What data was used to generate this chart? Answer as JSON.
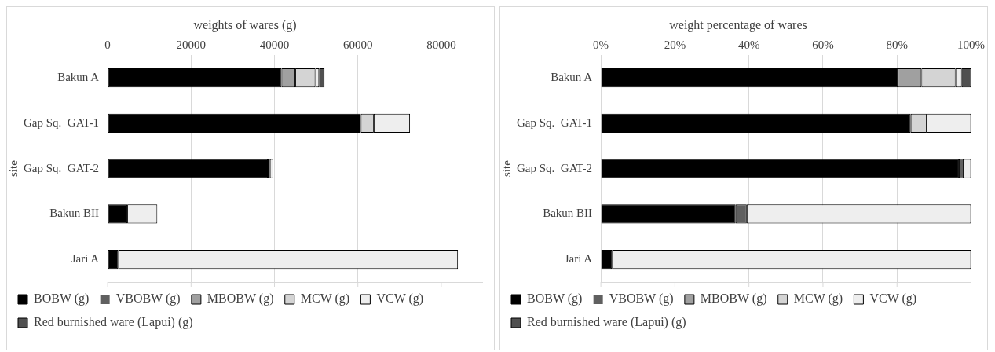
{
  "chart_data": [
    {
      "type": "bar",
      "orientation": "horizontal",
      "stacked": true,
      "title": "weights of wares (g)",
      "ylabel": "site",
      "categories": [
        "Bakun A",
        "Gap Sq.  GAT-1",
        "Gap Sq.  GAT-2",
        "Bakun BII",
        "Jari A"
      ],
      "xlim": [
        0,
        90000
      ],
      "xticks": [
        0,
        20000,
        40000,
        60000,
        80000
      ],
      "grid": "x",
      "legend": "bottom",
      "series": [
        {
          "name": "BOBW (g)",
          "color": "#000000",
          "values": [
            41700,
            60700,
            38400,
            4700,
            2500
          ]
        },
        {
          "name": "VBOBW (g)",
          "color": "#606060",
          "values": [
            0,
            0,
            500,
            null,
            0
          ]
        },
        {
          "name": "MBOBW (g)",
          "color": "#a0a0a0",
          "values": [
            3300,
            0,
            0,
            0,
            0
          ]
        },
        {
          "name": "MCW (g)",
          "color": "#d4d4d4",
          "values": [
            4800,
            3100,
            0,
            0,
            0
          ]
        },
        {
          "name": "VCW (g)",
          "color": "#eeeeee",
          "values": [
            900,
            8700,
            800,
            7200,
            81500
          ]
        },
        {
          "name": "Red burnished ware (Lapui) (g)",
          "color": "#505050",
          "values": [
            1300,
            0,
            0,
            0,
            0
          ]
        }
      ]
    },
    {
      "type": "bar",
      "orientation": "horizontal",
      "stacked": true,
      "title": "weight percentage of wares",
      "ylabel": "site",
      "categories": [
        "Bakun A",
        "Gap Sq.  GAT-1",
        "Gap Sq.  GAT-2",
        "Bakun BII",
        "Jari A"
      ],
      "xlim": [
        0,
        100
      ],
      "xticks": [
        {
          "value": 0,
          "label": "0%"
        },
        {
          "value": 20,
          "label": "20%"
        },
        {
          "value": 40,
          "label": "40%"
        },
        {
          "value": 60,
          "label": "60%"
        },
        {
          "value": 80,
          "label": "80%"
        },
        {
          "value": 100,
          "label": "100%"
        }
      ],
      "grid": "x",
      "legend": "bottom",
      "series": [
        {
          "name": "BOBW (g)",
          "color": "#000000",
          "values": [
            80.2,
            83.7,
            96.7,
            36.4,
            3.0
          ]
        },
        {
          "name": "VBOBW (g)",
          "color": "#606060",
          "values": [
            0,
            0,
            1.3,
            3.0,
            0
          ]
        },
        {
          "name": "MBOBW (g)",
          "color": "#a0a0a0",
          "values": [
            6.4,
            0,
            0,
            0,
            0
          ]
        },
        {
          "name": "MCW (g)",
          "color": "#d4d4d4",
          "values": [
            9.2,
            4.3,
            0,
            0,
            0
          ]
        },
        {
          "name": "VCW (g)",
          "color": "#eeeeee",
          "values": [
            1.7,
            12.0,
            2.0,
            60.6,
            97.0
          ]
        },
        {
          "name": "Red burnished ware (Lapui) (g)",
          "color": "#505050",
          "values": [
            2.5,
            0,
            0,
            0,
            0
          ]
        }
      ]
    }
  ]
}
